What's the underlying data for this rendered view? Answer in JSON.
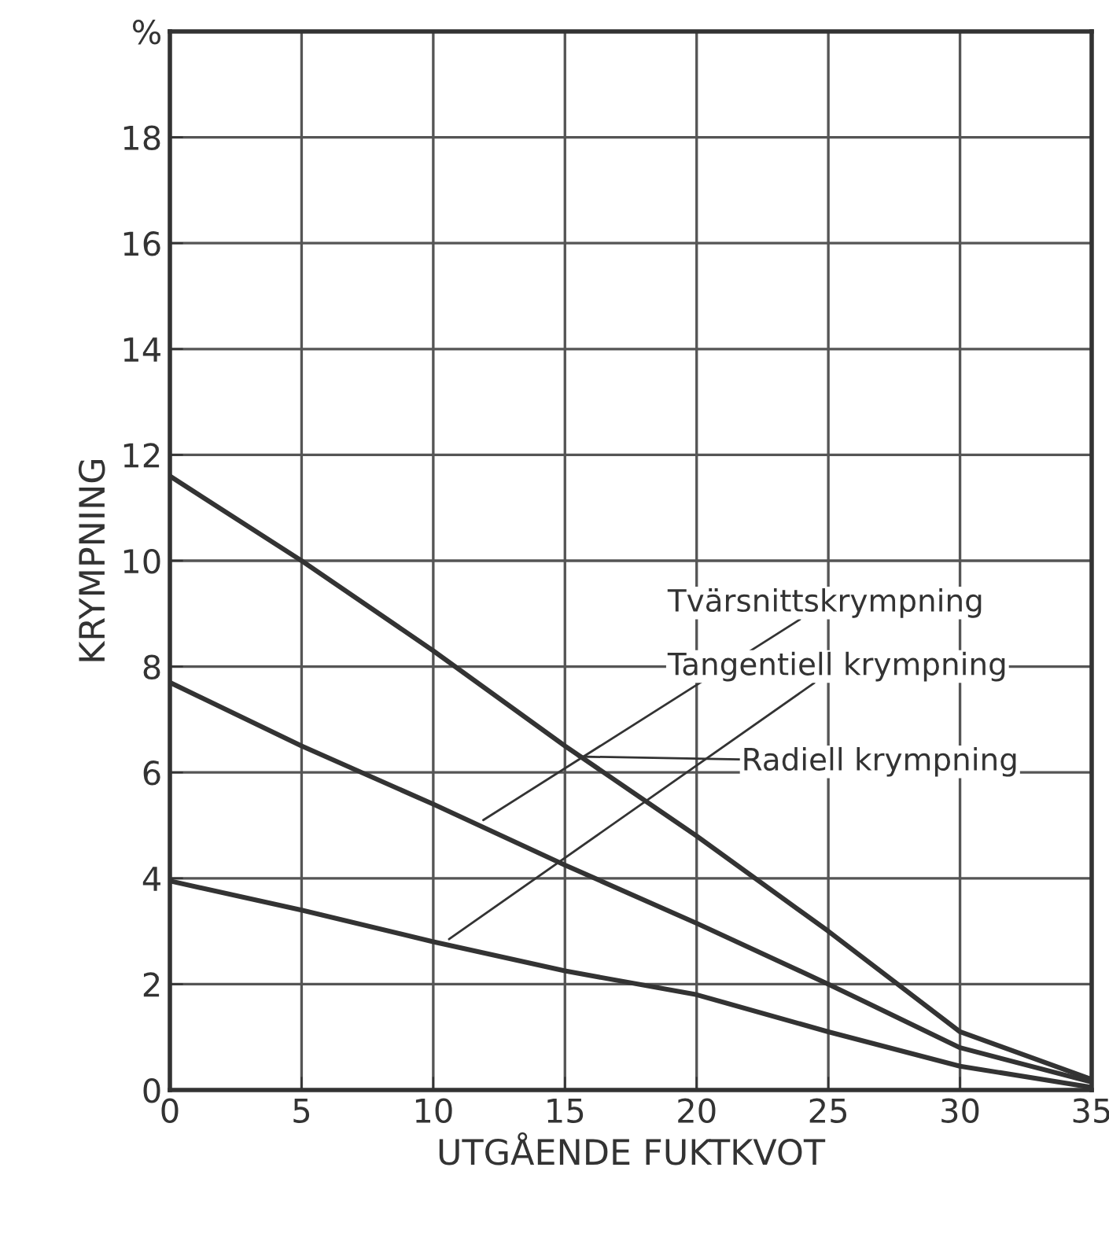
{
  "chart_data": {
    "type": "line",
    "xlabel": "UTGÅENDE FUKTKVOT",
    "ylabel": "KRYMPNING",
    "x": [
      0,
      5,
      10,
      15,
      20,
      25,
      30,
      35
    ],
    "series": [
      {
        "color": "#333333",
        "values": [
          11.6,
          10.0,
          8.3,
          6.5,
          4.8,
          3.0,
          1.1,
          0.2
        ]
      },
      {
        "color": "#333333",
        "values": [
          7.7,
          6.5,
          5.4,
          4.25,
          3.15,
          2.0,
          0.8,
          0.15
        ]
      },
      {
        "color": "#333333",
        "values": [
          3.95,
          3.4,
          2.8,
          2.25,
          1.8,
          1.1,
          0.45,
          0.05
        ]
      }
    ],
    "annotations": [
      {
        "text": "Tvärsnittskrympning",
        "x": 11.9,
        "y": 5.1
      },
      {
        "text": "Tangentiell krympning",
        "x": 10.6,
        "y": 2.85
      },
      {
        "text": "Radiell krympning",
        "x": 15.5,
        "y": 6.3
      }
    ],
    "xlim": [
      0,
      35
    ],
    "ylim": [
      0,
      20
    ],
    "xticks": [
      0,
      5,
      10,
      15,
      20,
      25,
      30,
      35
    ],
    "yticks": [
      0,
      2,
      4,
      6,
      8,
      10,
      12,
      14,
      16,
      18,
      {
        "value": 20,
        "label": "%"
      }
    ],
    "grid": true,
    "legend": false,
    "marker": "none",
    "line_style": "solid"
  }
}
